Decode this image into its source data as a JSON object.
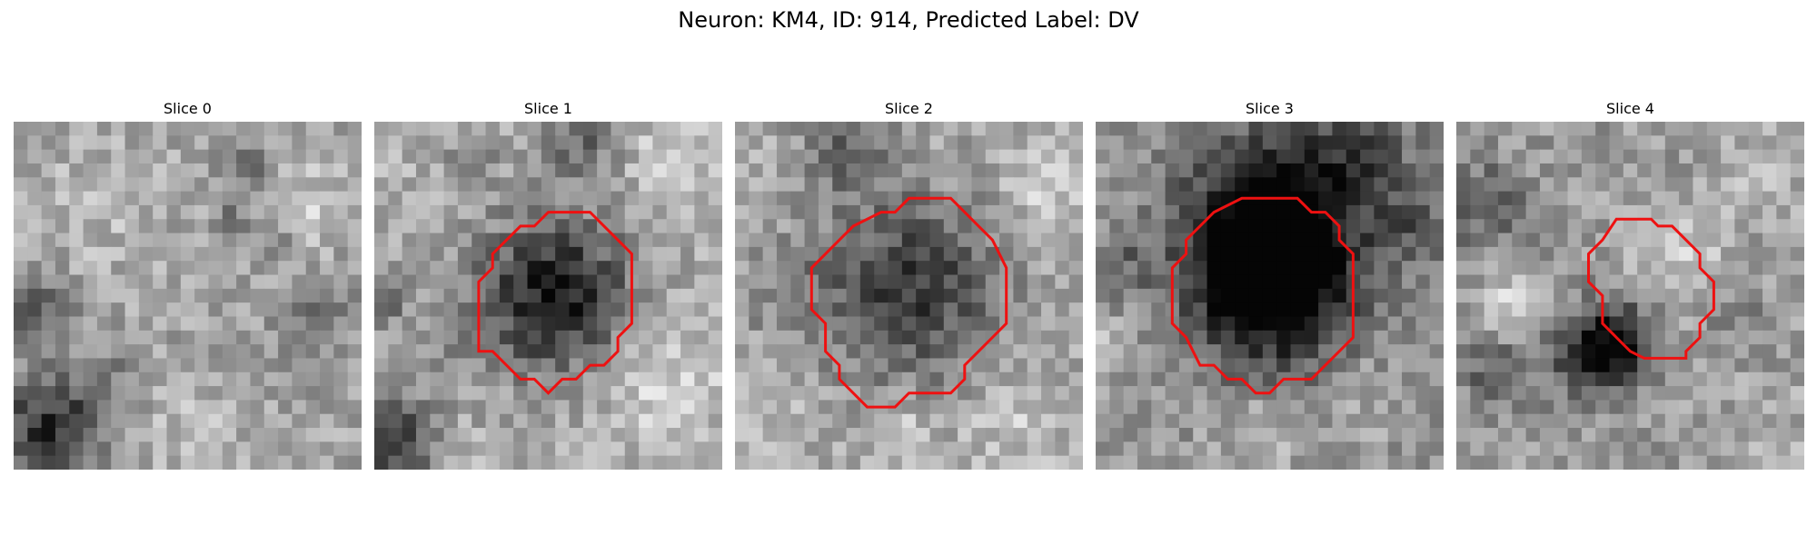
{
  "figure": {
    "title": "Neuron: KM4, ID: 914, Predicted Label: DV"
  },
  "panels": [
    {
      "title": "Slice 0",
      "has_contour": false
    },
    {
      "title": "Slice 1",
      "has_contour": true
    },
    {
      "title": "Slice 2",
      "has_contour": true
    },
    {
      "title": "Slice 3",
      "has_contour": true
    },
    {
      "title": "Slice 4",
      "has_contour": true
    }
  ],
  "colors": {
    "contour": "#ee1111"
  }
}
